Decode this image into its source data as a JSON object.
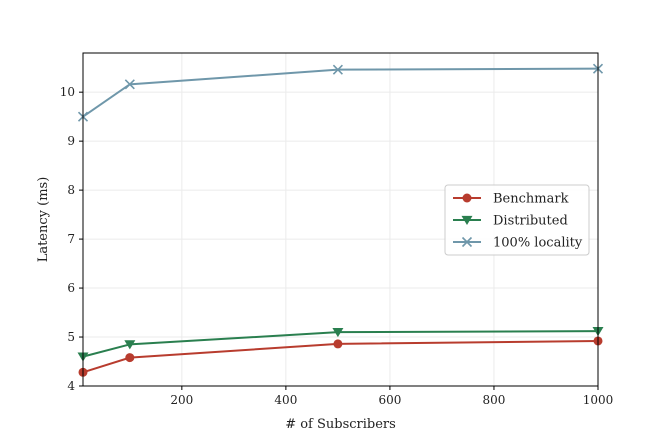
{
  "chart_data": {
    "type": "line",
    "xlabel": "# of Subscribers",
    "ylabel": "Latency (ms)",
    "xlim": [
      10,
      1000
    ],
    "ylim": [
      4,
      10.8
    ],
    "xticks": [
      200,
      400,
      600,
      800,
      1000
    ],
    "yticks": [
      4,
      5,
      6,
      7,
      8,
      9,
      10
    ],
    "grid": true,
    "legend_position": "center-right",
    "series": [
      {
        "name": "Benchmark",
        "color": "#b83c2e",
        "marker": "circle",
        "x": [
          10,
          100,
          500,
          1000
        ],
        "y": [
          4.28,
          4.58,
          4.86,
          4.92
        ]
      },
      {
        "name": "Distributed",
        "color": "#2a7f4f",
        "marker": "triangle-down",
        "x": [
          10,
          100,
          500,
          1000
        ],
        "y": [
          4.6,
          4.85,
          5.1,
          5.12
        ]
      },
      {
        "name": "100% locality",
        "color": "#6f97aa",
        "marker": "x",
        "x": [
          10,
          100,
          500,
          1000
        ],
        "y": [
          9.5,
          10.16,
          10.46,
          10.48
        ]
      }
    ]
  }
}
